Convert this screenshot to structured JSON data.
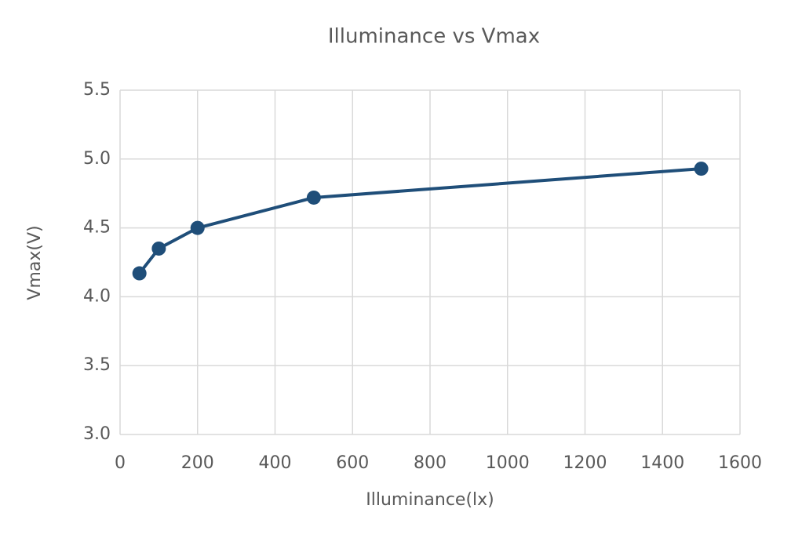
{
  "chart_data": {
    "type": "line",
    "title": "Illuminance vs Vmax",
    "x_label": "Illuminance(lx)",
    "y_label": "Vmax(V)",
    "x": [
      50,
      100,
      200,
      500,
      1500
    ],
    "series": [
      {
        "name": "Vmax",
        "color": "#1f4e79",
        "values": [
          4.17,
          4.35,
          4.5,
          4.72,
          4.93
        ]
      }
    ],
    "xlim": [
      0,
      1600
    ],
    "xticks": [
      0,
      200,
      400,
      600,
      800,
      1000,
      1200,
      1400,
      1600
    ],
    "ylim": [
      3,
      5.5
    ],
    "yticks": [
      {
        "value": 3,
        "label": "3.0"
      },
      3.5,
      {
        "value": 4,
        "label": "4.0"
      },
      4.5,
      {
        "value": 5,
        "label": "5.0"
      },
      5.5
    ],
    "grid": true
  }
}
